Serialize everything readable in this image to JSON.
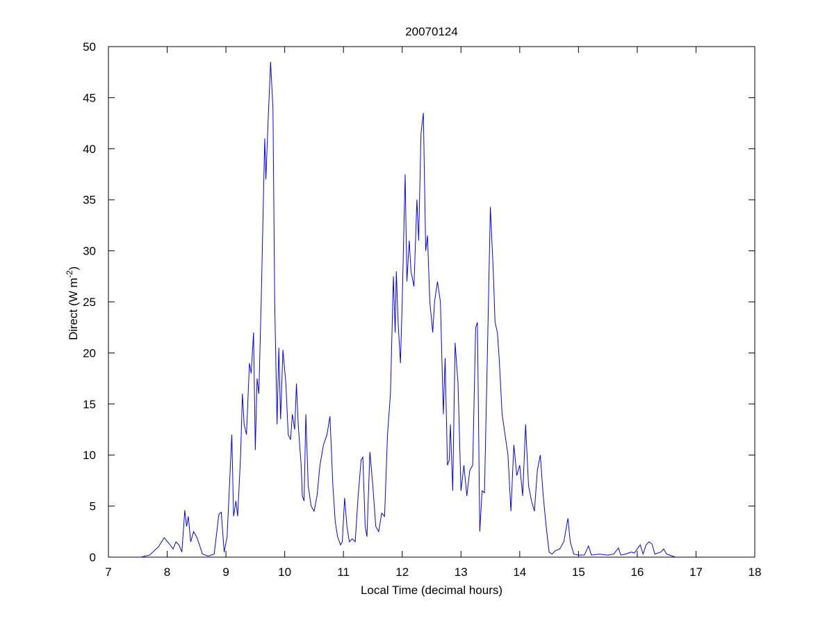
{
  "chart_data": {
    "type": "line",
    "title": "20070124",
    "xlabel": "Local Time (decimal hours)",
    "ylabel": [
      "Direct (W m",
      "-2",
      ")"
    ],
    "xlim": [
      7,
      18
    ],
    "ylim": [
      0,
      50
    ],
    "xticks": [
      7,
      8,
      9,
      10,
      11,
      12,
      13,
      14,
      15,
      16,
      17,
      18
    ],
    "yticks": [
      0,
      5,
      10,
      15,
      20,
      25,
      30,
      35,
      40,
      45,
      50
    ],
    "x": [
      7.55,
      7.7,
      7.85,
      7.95,
      8.05,
      8.1,
      8.15,
      8.2,
      8.25,
      8.3,
      8.33,
      8.36,
      8.4,
      8.45,
      8.5,
      8.55,
      8.6,
      8.7,
      8.8,
      8.88,
      8.92,
      8.97,
      9.02,
      9.1,
      9.13,
      9.17,
      9.2,
      9.25,
      9.28,
      9.31,
      9.35,
      9.4,
      9.43,
      9.47,
      9.5,
      9.53,
      9.56,
      9.6,
      9.63,
      9.66,
      9.68,
      9.72,
      9.76,
      9.8,
      9.83,
      9.87,
      9.9,
      9.93,
      9.97,
      10.02,
      10.06,
      10.1,
      10.13,
      10.17,
      10.2,
      10.23,
      10.28,
      10.3,
      10.33,
      10.36,
      10.4,
      10.45,
      10.5,
      10.55,
      10.6,
      10.66,
      10.72,
      10.77,
      10.82,
      10.86,
      10.9,
      10.95,
      10.98,
      11.02,
      11.06,
      11.1,
      11.15,
      11.2,
      11.25,
      11.3,
      11.33,
      11.37,
      11.4,
      11.45,
      11.5,
      11.55,
      11.6,
      11.65,
      11.7,
      11.75,
      11.8,
      11.85,
      11.88,
      11.9,
      11.93,
      11.97,
      12.0,
      12.05,
      12.08,
      12.12,
      12.15,
      12.2,
      12.25,
      12.28,
      12.32,
      12.36,
      12.4,
      12.43,
      12.47,
      12.52,
      12.55,
      12.6,
      12.65,
      12.7,
      12.73,
      12.77,
      12.8,
      12.82,
      12.86,
      12.9,
      12.95,
      13.0,
      13.05,
      13.1,
      13.15,
      13.2,
      13.25,
      13.28,
      13.32,
      13.36,
      13.4,
      13.45,
      13.5,
      13.55,
      13.58,
      13.62,
      13.65,
      13.7,
      13.75,
      13.8,
      13.85,
      13.9,
      13.95,
      14.0,
      14.05,
      14.1,
      14.15,
      14.2,
      14.25,
      14.3,
      14.35,
      14.4,
      14.45,
      14.5,
      14.55,
      14.6,
      14.68,
      14.75,
      14.82,
      14.86,
      14.92,
      15.0,
      15.1,
      15.17,
      15.22,
      15.35,
      15.5,
      15.6,
      15.68,
      15.72,
      15.8,
      15.9,
      15.95,
      16.05,
      16.1,
      16.15,
      16.2,
      16.25,
      16.3,
      16.4,
      16.45,
      16.5,
      16.6,
      16.65
    ],
    "series": [
      {
        "color": "#0000ff",
        "values": [
          0,
          0.2,
          1,
          1.9,
          1.2,
          0.8,
          1.5,
          1.2,
          0.5,
          4.6,
          3,
          4,
          1.5,
          2.5,
          2,
          1.2,
          0.3,
          0.1,
          0.3,
          4.2,
          4.4,
          0.5,
          2,
          12,
          4,
          5.5,
          4,
          10,
          16,
          13,
          12,
          19,
          18,
          22,
          10.5,
          17.5,
          16,
          25,
          33,
          41,
          37,
          43,
          48.5,
          44,
          25,
          13,
          20.5,
          13.5,
          20.3,
          17,
          12,
          11.5,
          14,
          12.5,
          17,
          13,
          9,
          6,
          5.5,
          14,
          7,
          5,
          4.5,
          6,
          9,
          11,
          12,
          13.8,
          7,
          3.5,
          2,
          1.2,
          1.5,
          5.8,
          3,
          1.5,
          1.8,
          1.5,
          6,
          9.5,
          9.8,
          3,
          2,
          10.3,
          7,
          3,
          2.5,
          4.3,
          4,
          12,
          16,
          27.5,
          22,
          28,
          23,
          19,
          25,
          37.5,
          27,
          31,
          28,
          26.5,
          35,
          31,
          41.5,
          43.5,
          30,
          31.5,
          25,
          22,
          25,
          27,
          25,
          14,
          19.5,
          9,
          9.5,
          13,
          6.5,
          21,
          17,
          6.5,
          9,
          6,
          8.5,
          9,
          22.5,
          23,
          2.5,
          6.5,
          6.3,
          20,
          34.3,
          28,
          23,
          22,
          19.5,
          14,
          12,
          10,
          4.5,
          11,
          8,
          9,
          6,
          13,
          7,
          5.5,
          4.5,
          8.5,
          10,
          6,
          3,
          0.5,
          0.3,
          0.6,
          0.8,
          1.5,
          3.8,
          1.5,
          0.3,
          0.2,
          0.2,
          1.1,
          0.2,
          0.3,
          0.2,
          0.3,
          0.9,
          0.2,
          0.3,
          0.5,
          0.4,
          1.2,
          0.3,
          1.2,
          1.5,
          1.3,
          0.3,
          0.5,
          0.8,
          0.3,
          0.1,
          0
        ]
      }
    ]
  }
}
